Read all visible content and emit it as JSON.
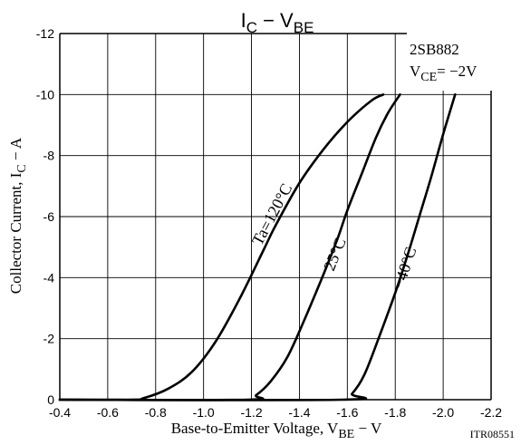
{
  "title": {
    "main": "I",
    "sub1": "C",
    "mid": " − V",
    "sub2": "BE"
  },
  "xlabel": {
    "pre": "Base-to-Emitter Voltage, V",
    "sub": "BE",
    "post": "  −  V"
  },
  "ylabel": {
    "pre": "Collector Current, I",
    "sub": "C",
    "post": "  −  A"
  },
  "box": {
    "line1": "2SB882",
    "line2_pre": "V",
    "line2_sub": "CE",
    "line2_post": "= −2V"
  },
  "code": "ITR08551",
  "colors": {
    "curve": "#000000",
    "grid": "#000000",
    "background": "#ffffff"
  },
  "chart_data": {
    "type": "line",
    "title": "IC − VBE",
    "xlabel": "Base-to-Emitter Voltage, VBE − V",
    "ylabel": "Collector Current, IC − A",
    "xlim": [
      -0.4,
      -2.2
    ],
    "ylim": [
      0,
      -12
    ],
    "grid": true,
    "x_ticks": [
      "-0.4",
      "-0.6",
      "-0.8",
      "-1.0",
      "-1.2",
      "-1.4",
      "-1.6",
      "-1.8",
      "-2.0",
      "-2.2"
    ],
    "y_ticks": [
      "0",
      "-2",
      "-4",
      "-6",
      "-8",
      "-10",
      "-12"
    ],
    "series": [
      {
        "name": "Ta=120°C",
        "x": [
          -0.4,
          -0.7,
          -0.75,
          -0.85,
          -0.95,
          -1.05,
          -1.15,
          -1.25,
          -1.3,
          -1.4,
          -1.5,
          -1.6,
          -1.7,
          -1.75
        ],
        "y": [
          0,
          0,
          -0.05,
          -0.35,
          -0.9,
          -1.9,
          -3.3,
          -4.9,
          -5.7,
          -7.1,
          -8.2,
          -9.1,
          -9.8,
          -10
        ]
      },
      {
        "name": "25°C",
        "x": [
          -0.4,
          -1.18,
          -1.22,
          -1.28,
          -1.35,
          -1.42,
          -1.5,
          -1.56,
          -1.6,
          -1.66,
          -1.72,
          -1.77,
          -1.82
        ],
        "y": [
          0,
          0,
          -0.15,
          -0.6,
          -1.4,
          -2.6,
          -4.1,
          -5.3,
          -6.2,
          -7.4,
          -8.6,
          -9.4,
          -10
        ]
      },
      {
        "name": "−40°C",
        "x": [
          -0.4,
          -1.58,
          -1.62,
          -1.67,
          -1.73,
          -1.8,
          -1.85,
          -1.9,
          -1.95,
          -2.0,
          -2.05
        ],
        "y": [
          0,
          0,
          -0.2,
          -0.8,
          -2.0,
          -3.5,
          -4.7,
          -6.0,
          -7.3,
          -8.7,
          -10
        ]
      }
    ],
    "annotations": [
      "Ta=120°C",
      "25°C",
      "−40°C"
    ]
  }
}
